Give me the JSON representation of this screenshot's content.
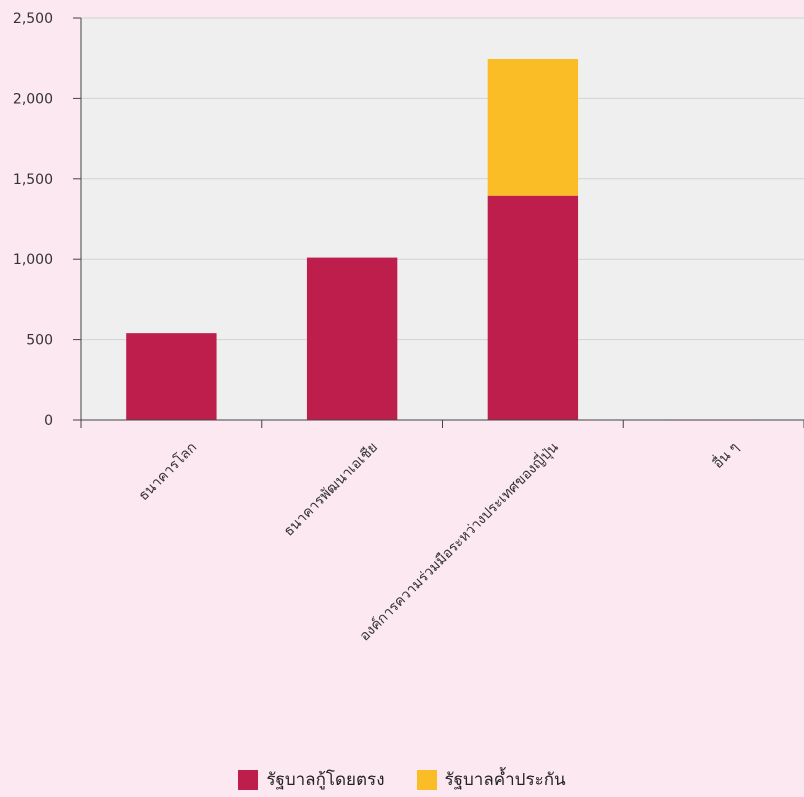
{
  "chart_data": {
    "type": "bar",
    "stacked": true,
    "categories": [
      "ธนาคารโลก",
      "ธนาคารพัฒนาเอเชีย",
      "องค์การความร่วมมือระหว่างประเทศของญี่ปุ่น",
      "อื่น ๆ"
    ],
    "series": [
      {
        "name": "รัฐบาลกู้โดยตรง",
        "values": [
          540,
          1010,
          1395,
          3
        ]
      },
      {
        "name": "รัฐบาลค้ำประกัน",
        "values": [
          0,
          0,
          850,
          0
        ]
      }
    ],
    "yticks": [
      "0",
      "500",
      "1,000",
      "1,500",
      "2,000",
      "2,500"
    ],
    "ylim": [
      0,
      2500
    ],
    "grid": true,
    "legend_position": "bottom",
    "colors": [
      "#be1e4b",
      "#fbbd25"
    ],
    "plot_background": "#efefef",
    "page_background": "#fce8f1"
  }
}
